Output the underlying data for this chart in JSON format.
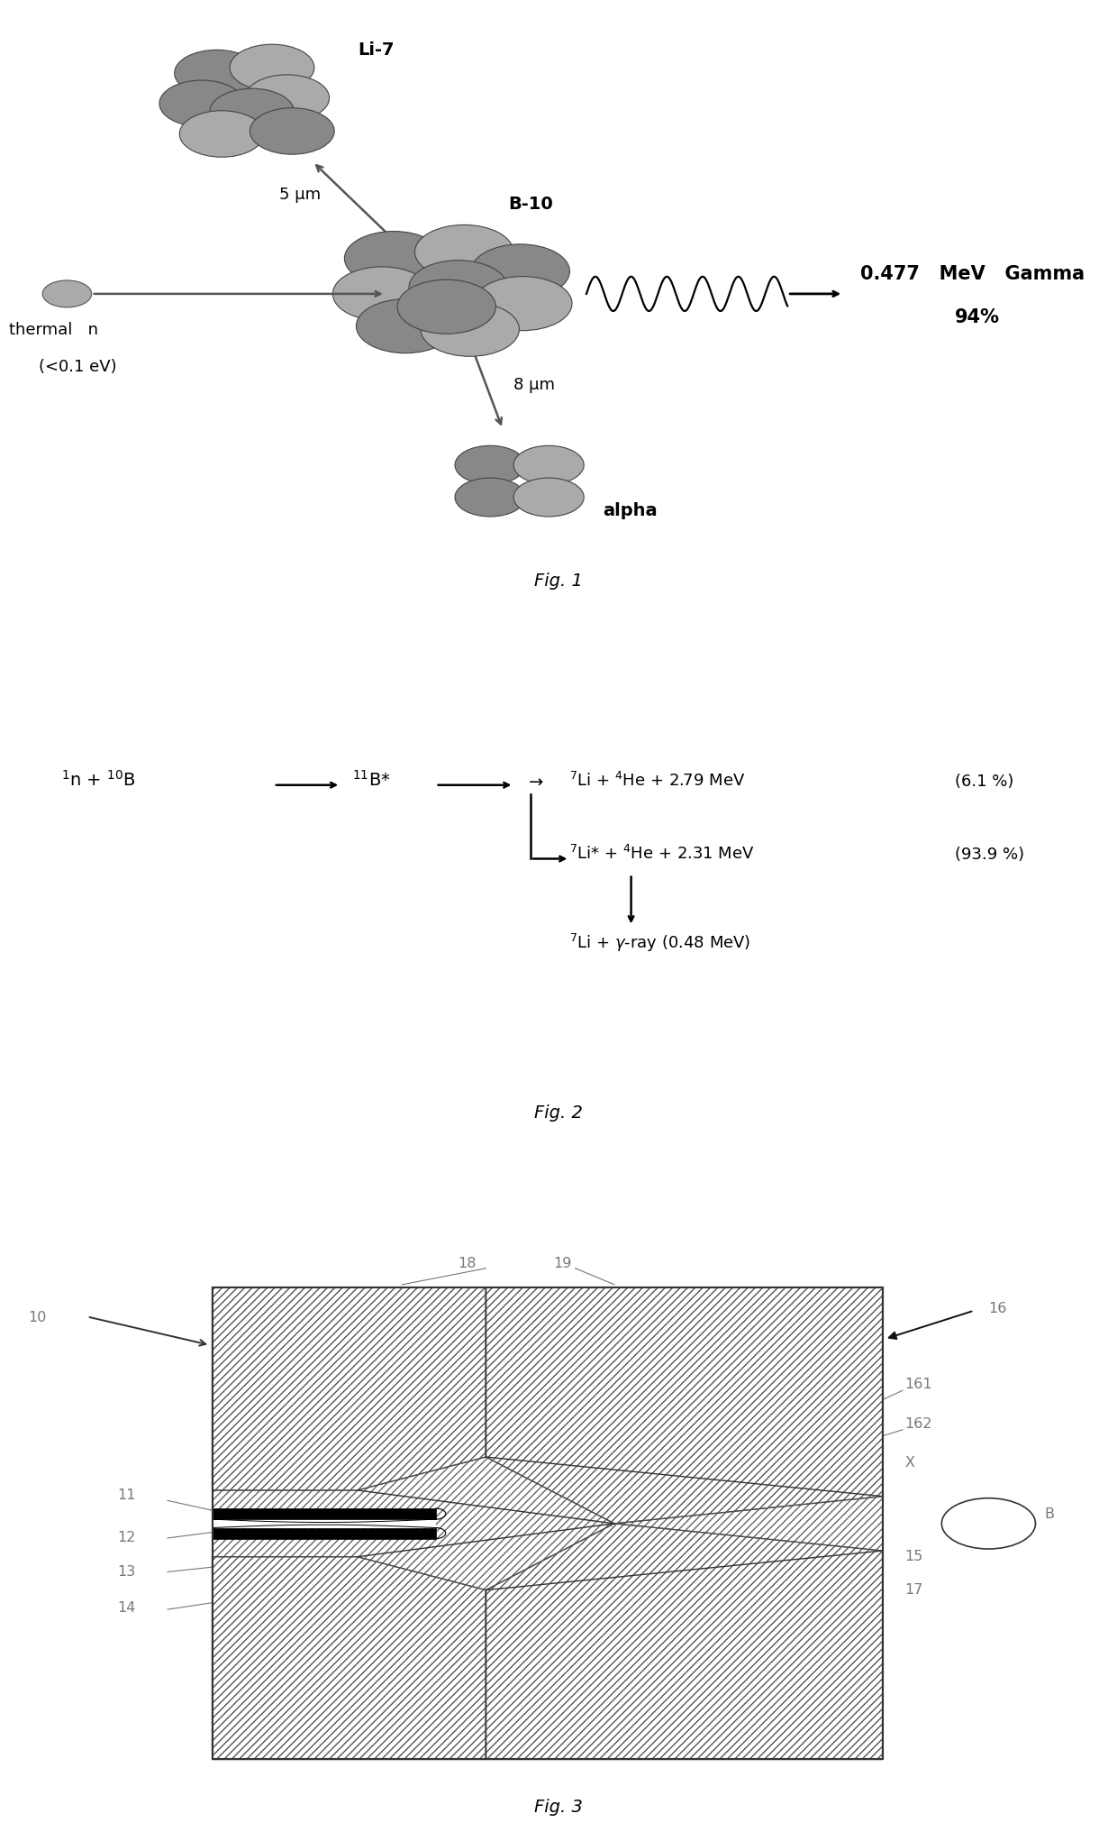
{
  "fig_width": 12.4,
  "fig_height": 20.33,
  "bg_color": "#ffffff",
  "fig1_caption": "Fig. 1",
  "fig2_caption": "Fig. 2",
  "fig3_caption": "Fig. 3"
}
